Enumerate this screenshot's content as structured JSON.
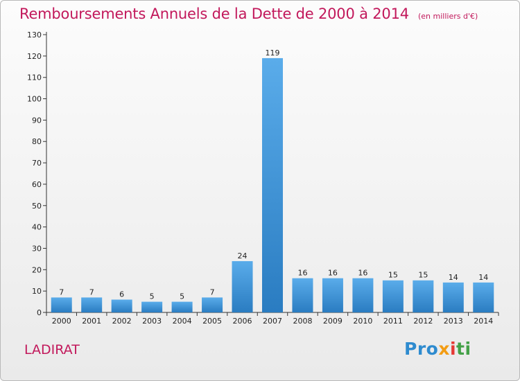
{
  "header": {
    "title": "Remboursements Annuels de la Dette de 2000 à 2014",
    "unit": "(en milliers d'€)"
  },
  "footer": {
    "city": "LADIRAT",
    "logo": [
      "Pro",
      "x",
      "i",
      "ti"
    ]
  },
  "colors": {
    "title": "#c2185b",
    "bar_top": "#5aacea",
    "bar_bottom": "#2a7cc1"
  },
  "chart_data": {
    "type": "bar",
    "title": "Remboursements Annuels de la Dette de 2000 à 2014",
    "xlabel": "",
    "ylabel": "",
    "categories": [
      "2000",
      "2001",
      "2002",
      "2003",
      "2004",
      "2005",
      "2006",
      "2007",
      "2008",
      "2009",
      "2010",
      "2011",
      "2012",
      "2013",
      "2014"
    ],
    "values": [
      7,
      7,
      6,
      5,
      5,
      7,
      24,
      119,
      16,
      16,
      16,
      15,
      15,
      14,
      14
    ],
    "ylim": [
      0,
      130
    ],
    "yticks": [
      0,
      10,
      20,
      30,
      40,
      50,
      60,
      70,
      80,
      90,
      100,
      110,
      120,
      130
    ],
    "grid": false,
    "data_labels": true
  }
}
